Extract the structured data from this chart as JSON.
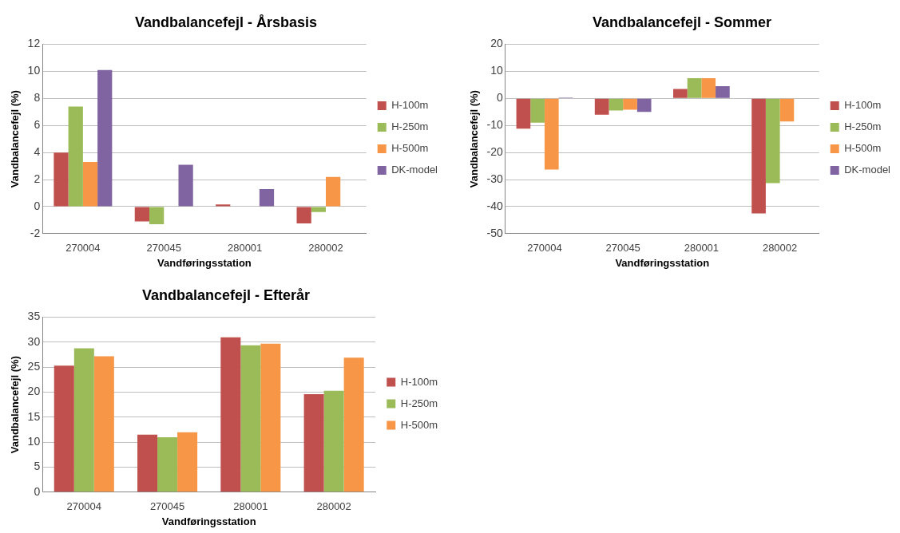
{
  "chart_data": [
    {
      "type": "bar",
      "title": "Vandbalancefejl - Årsbasis",
      "xlabel": "Vandføringsstation",
      "ylabel": "Vandbalancefejl (%)",
      "categories": [
        "270004",
        "270045",
        "280001",
        "280002"
      ],
      "series": [
        {
          "name": "H-100m",
          "color": "#c0504d",
          "values": [
            4.0,
            -1.1,
            0.15,
            -1.25
          ]
        },
        {
          "name": "H-250m",
          "color": "#9bbb59",
          "values": [
            7.4,
            -1.3,
            null,
            -0.4
          ]
        },
        {
          "name": "H-500m",
          "color": "#f79646",
          "values": [
            3.3,
            null,
            null,
            2.2
          ]
        },
        {
          "name": "DK-model",
          "color": "#8064a2",
          "values": [
            10.1,
            3.1,
            1.3,
            null
          ]
        }
      ],
      "ylim": [
        -2,
        12
      ],
      "yticks": [
        -2,
        0,
        2,
        4,
        6,
        8,
        10,
        12
      ],
      "grid": "y",
      "legend": "right"
    },
    {
      "type": "bar",
      "title": "Vandbalancefejl - Sommer",
      "xlabel": "Vandføringsstation",
      "ylabel": "Vandbalancefejl (%)",
      "categories": [
        "270004",
        "270045",
        "280001",
        "280002"
      ],
      "series": [
        {
          "name": "H-100m",
          "color": "#c0504d",
          "values": [
            -11.2,
            -6,
            3.5,
            -42.5
          ]
        },
        {
          "name": "H-250m",
          "color": "#9bbb59",
          "values": [
            -9,
            -4.5,
            7.5,
            -31.3
          ]
        },
        {
          "name": "H-500m",
          "color": "#f79646",
          "values": [
            -26.3,
            -4.2,
            7.5,
            -8.5
          ]
        },
        {
          "name": "DK-model",
          "color": "#8064a2",
          "values": [
            0.3,
            -5,
            4.5,
            null
          ]
        }
      ],
      "ylim": [
        -50,
        20
      ],
      "yticks": [
        -50,
        -40,
        -30,
        -20,
        -10,
        0,
        10,
        20
      ],
      "grid": "y",
      "legend": "right"
    },
    {
      "type": "bar",
      "title": "Vandbalancefejl - Efterår",
      "xlabel": "Vandføringsstation",
      "ylabel": "Vandbalancefejl (%)",
      "categories": [
        "270004",
        "270045",
        "280001",
        "280002"
      ],
      "series": [
        {
          "name": "H-100m",
          "color": "#c0504d",
          "values": [
            25.3,
            11.5,
            31,
            19.6
          ]
        },
        {
          "name": "H-250m",
          "color": "#9bbb59",
          "values": [
            28.8,
            11,
            29.4,
            20.3
          ]
        },
        {
          "name": "H-500m",
          "color": "#f79646",
          "values": [
            27.2,
            12,
            29.7,
            26.9
          ]
        }
      ],
      "ylim": [
        0,
        35
      ],
      "yticks": [
        0,
        5,
        10,
        15,
        20,
        25,
        30,
        35
      ],
      "grid": "y",
      "legend": "right"
    }
  ]
}
